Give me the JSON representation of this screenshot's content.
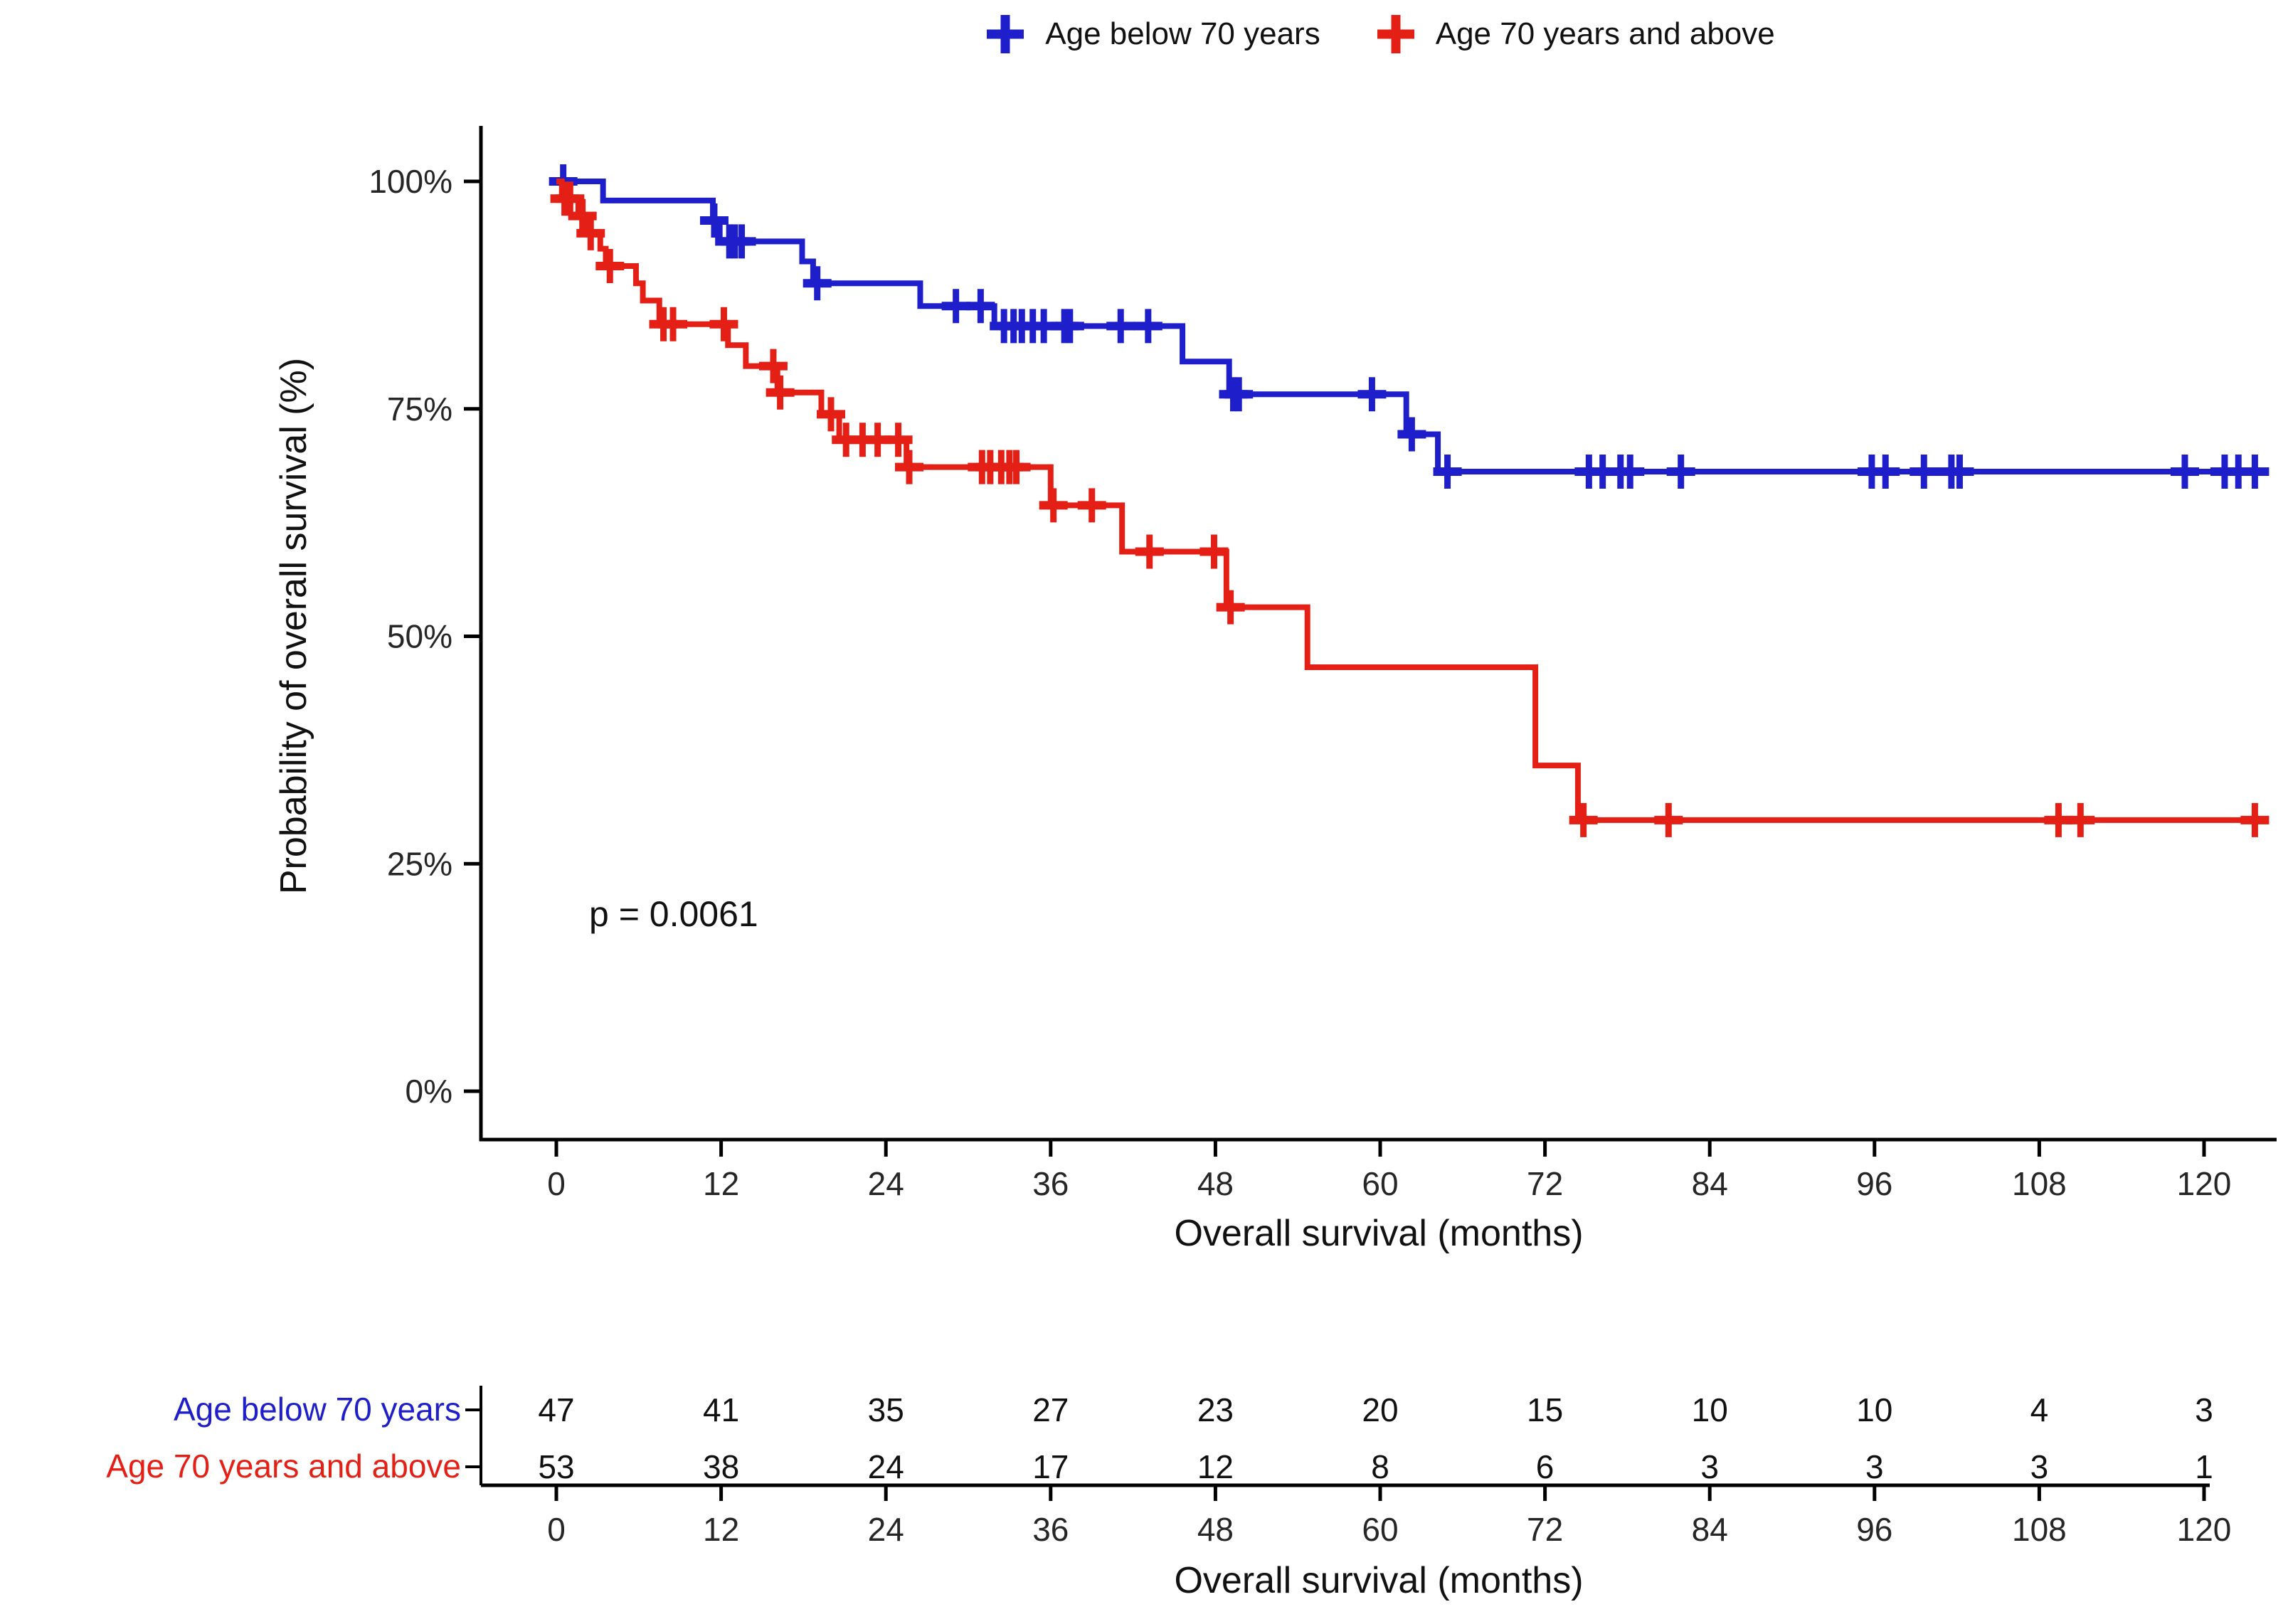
{
  "page": {
    "background": "#ffffff"
  },
  "legend": {
    "items": [
      {
        "label": "Age below 70 years",
        "color": "#1e1ecb",
        "marker": "plus-icon"
      },
      {
        "label": "Age 70 years and above",
        "color": "#e41f15",
        "marker": "plus-icon"
      }
    ]
  },
  "plot": {
    "y_axis_title": "Probability of overall survival (%)",
    "x_axis_title": "Overall survival (months)",
    "p_value_text": "p = 0.0061",
    "axis_color": "#000000",
    "tick_label_color": "#262626"
  },
  "risk_table": {
    "x_axis_title": "Overall survival (months)",
    "time_points": [
      0,
      12,
      24,
      36,
      48,
      60,
      72,
      84,
      96,
      108,
      120
    ],
    "rows": [
      {
        "label": "Age below 70 years",
        "color": "#1e1ecb",
        "counts": [
          "47",
          "41",
          "35",
          "27",
          "23",
          "20",
          "15",
          "10",
          "10",
          "4",
          "3"
        ]
      },
      {
        "label": "Age 70 years and above",
        "color": "#e41f15",
        "counts": [
          "53",
          "38",
          "24",
          "17",
          "12",
          "8",
          "6",
          "3",
          "3",
          "3",
          "1"
        ]
      }
    ]
  },
  "chart_data": {
    "type": "line",
    "subtype": "kaplan-meier-step",
    "title": "",
    "xlabel": "Overall survival (months)",
    "ylabel": "Probability of overall survival (%)",
    "xlim": [
      -5.5,
      125.3
    ],
    "ylim": [
      -5.2,
      106.1
    ],
    "grid": false,
    "legend_position": "top",
    "x_ticks": {
      "values": [
        0,
        12,
        24,
        36,
        48,
        60,
        72,
        84,
        96,
        108,
        120
      ],
      "labels": [
        "0",
        "12",
        "24",
        "36",
        "48",
        "60",
        "72",
        "84",
        "96",
        "108",
        "120"
      ]
    },
    "y_ticks": {
      "values": [
        0,
        25,
        50,
        75,
        100
      ],
      "labels": [
        "0%",
        "25%",
        "50%",
        "75%",
        "100%"
      ]
    },
    "p_value": "0.0061",
    "series": [
      {
        "name": "Age below 70 years",
        "color": "#1e1ecb",
        "end_month": 124.6,
        "steps": [
          [
            0,
            100
          ],
          [
            3.4,
            97.9
          ],
          [
            11.4,
            95.7
          ],
          [
            11.9,
            93.4
          ],
          [
            17.9,
            91.2
          ],
          [
            18.7,
            88.8
          ],
          [
            26.5,
            86.3
          ],
          [
            31.9,
            84.1
          ],
          [
            45.6,
            80.2
          ],
          [
            49.0,
            76.6
          ],
          [
            61.9,
            72.2
          ],
          [
            64.2,
            68.1
          ]
        ],
        "censors": [
          [
            0.5,
            100
          ],
          [
            11.5,
            95.7
          ],
          [
            12.6,
            93.4
          ],
          [
            13.0,
            93.4
          ],
          [
            13.5,
            93.4
          ],
          [
            19.0,
            88.8
          ],
          [
            29.1,
            86.3
          ],
          [
            30.9,
            86.3
          ],
          [
            32.6,
            84.1
          ],
          [
            33.3,
            84.1
          ],
          [
            33.9,
            84.1
          ],
          [
            34.7,
            84.1
          ],
          [
            35.5,
            84.1
          ],
          [
            37.0,
            84.1
          ],
          [
            37.4,
            84.1
          ],
          [
            41.1,
            84.1
          ],
          [
            43.1,
            84.1
          ],
          [
            49.3,
            76.6
          ],
          [
            49.7,
            76.6
          ],
          [
            59.4,
            76.6
          ],
          [
            62.3,
            72.2
          ],
          [
            64.9,
            68.1
          ],
          [
            75.2,
            68.1
          ],
          [
            76.2,
            68.1
          ],
          [
            77.5,
            68.1
          ],
          [
            78.2,
            68.1
          ],
          [
            81.9,
            68.1
          ],
          [
            95.8,
            68.1
          ],
          [
            96.8,
            68.1
          ],
          [
            99.6,
            68.1
          ],
          [
            101.6,
            68.1
          ],
          [
            102.2,
            68.1
          ],
          [
            118.6,
            68.1
          ],
          [
            121.5,
            68.1
          ],
          [
            122.5,
            68.1
          ],
          [
            123.7,
            68.1
          ]
        ]
      },
      {
        "name": "Age 70 years and above",
        "color": "#e41f15",
        "end_month": 124.4,
        "steps": [
          [
            0,
            100
          ],
          [
            0.4,
            98.1
          ],
          [
            1.6,
            96.2
          ],
          [
            2.2,
            94.3
          ],
          [
            3.2,
            92.6
          ],
          [
            3.6,
            90.7
          ],
          [
            5.8,
            88.8
          ],
          [
            6.3,
            86.9
          ],
          [
            7.5,
            84.3
          ],
          [
            12.5,
            82.0
          ],
          [
            13.8,
            79.7
          ],
          [
            16.1,
            76.8
          ],
          [
            19.3,
            74.4
          ],
          [
            20.6,
            71.6
          ],
          [
            25.5,
            68.6
          ],
          [
            36.0,
            64.4
          ],
          [
            41.2,
            59.3
          ],
          [
            48.8,
            53.2
          ],
          [
            54.7,
            46.6
          ],
          [
            71.3,
            35.8
          ],
          [
            74.4,
            29.8
          ]
        ],
        "censors": [
          [
            0.6,
            98.1
          ],
          [
            1.0,
            98.1
          ],
          [
            1.9,
            96.2
          ],
          [
            2.5,
            94.3
          ],
          [
            3.9,
            90.7
          ],
          [
            7.8,
            84.3
          ],
          [
            8.5,
            84.3
          ],
          [
            12.2,
            84.3
          ],
          [
            15.8,
            79.7
          ],
          [
            16.3,
            76.8
          ],
          [
            20.0,
            74.4
          ],
          [
            21.1,
            71.6
          ],
          [
            22.3,
            71.6
          ],
          [
            23.4,
            71.6
          ],
          [
            24.9,
            71.6
          ],
          [
            25.7,
            68.6
          ],
          [
            31.0,
            68.6
          ],
          [
            31.6,
            68.6
          ],
          [
            32.4,
            68.6
          ],
          [
            33.0,
            68.6
          ],
          [
            33.5,
            68.6
          ],
          [
            36.2,
            64.4
          ],
          [
            39.0,
            64.4
          ],
          [
            43.2,
            59.3
          ],
          [
            47.9,
            59.3
          ],
          [
            49.1,
            53.2
          ],
          [
            74.8,
            29.8
          ],
          [
            81.0,
            29.8
          ],
          [
            109.4,
            29.8
          ],
          [
            111.0,
            29.8
          ],
          [
            123.7,
            29.8
          ]
        ]
      }
    ]
  }
}
